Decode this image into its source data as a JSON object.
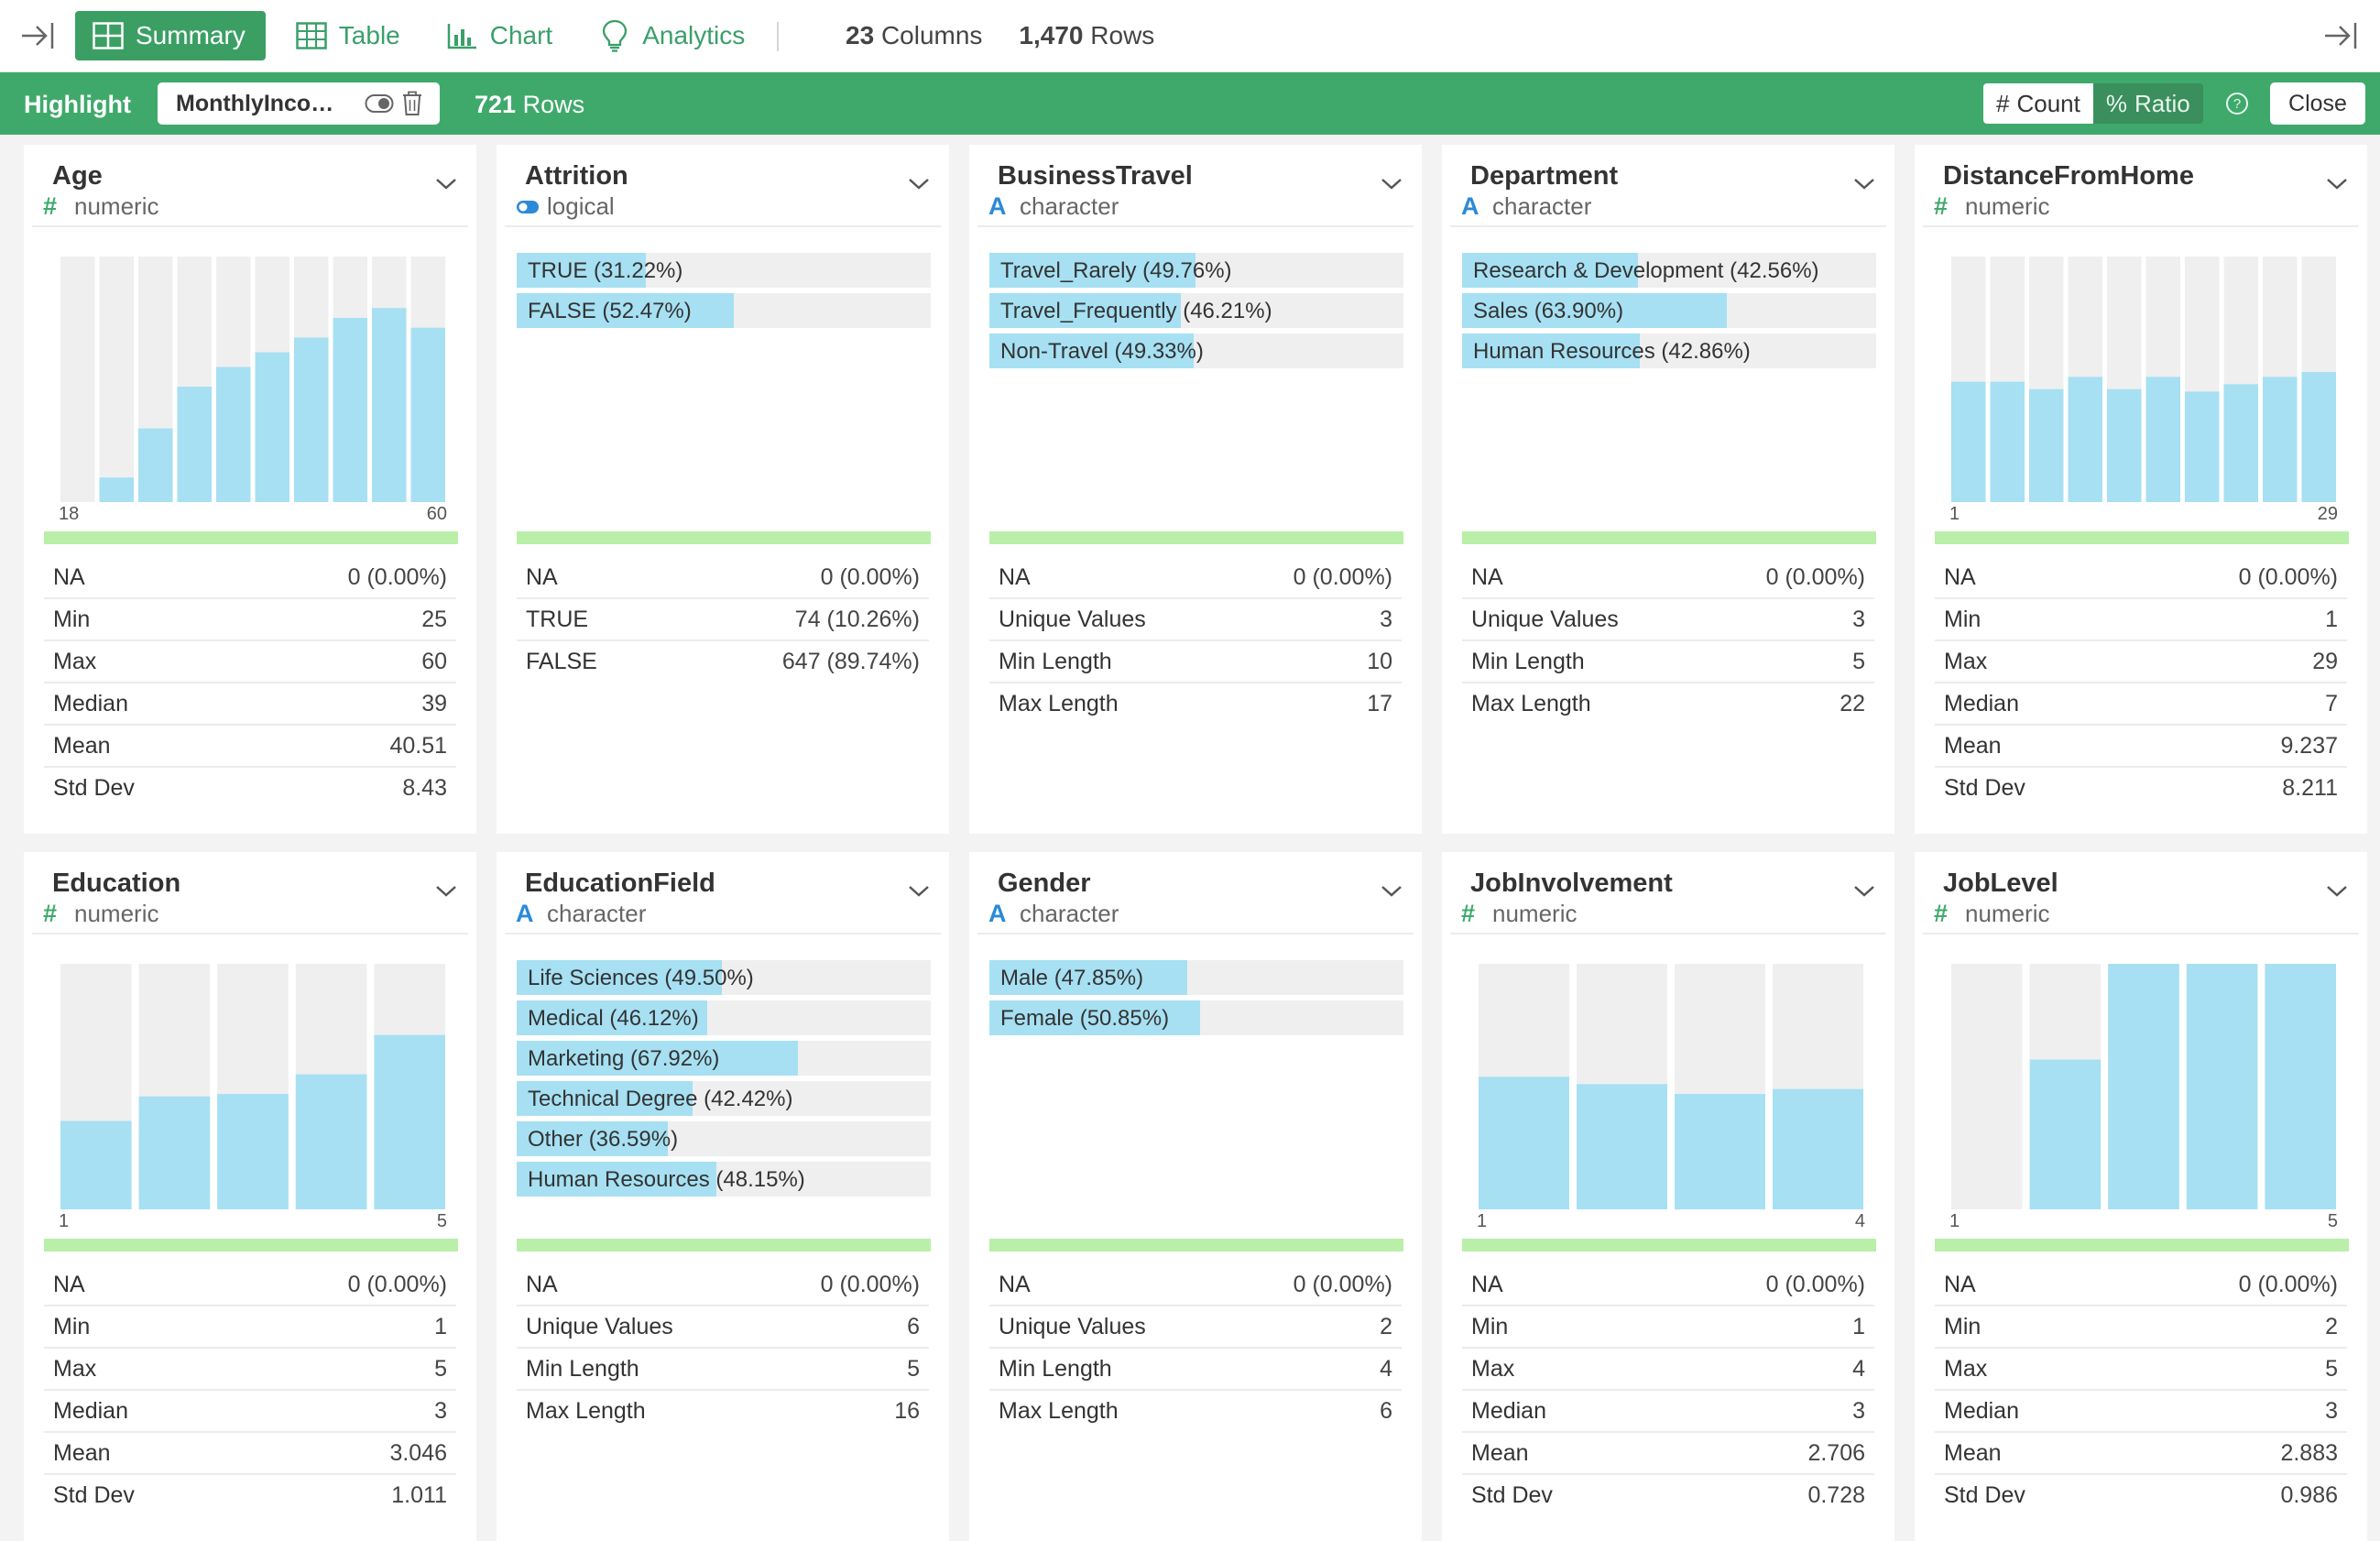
{
  "toolbar": {
    "tabs": [
      {
        "label": "Summary",
        "icon": "summary-icon",
        "active": true
      },
      {
        "label": "Table",
        "icon": "table-icon",
        "active": false
      },
      {
        "label": "Chart",
        "icon": "chart-icon",
        "active": false
      },
      {
        "label": "Analytics",
        "icon": "lightbulb-icon",
        "active": false
      }
    ],
    "columns_count": "23",
    "columns_label": "Columns",
    "rows_count": "1,470",
    "rows_label": "Rows"
  },
  "highlight": {
    "label": "Highlight",
    "column": "MonthlyIncom…",
    "rows_count": "721",
    "rows_label": "Rows",
    "count_label": "Count",
    "ratio_label": "Ratio",
    "close_label": "Close"
  },
  "colors": {
    "accent_green": "#3fa96b",
    "bar_fill": "#a6e0f2",
    "bar_bg": "#efefef",
    "na_bar": "#b9efa8"
  },
  "cards": [
    {
      "title": "Age",
      "type": "numeric",
      "type_icon": "hash-icon",
      "chart": {
        "kind": "hist",
        "axis_min": "18",
        "axis_max": "60",
        "fill": [
          0,
          0.1,
          0.3,
          0.47,
          0.55,
          0.61,
          0.67,
          0.75,
          0.79,
          0.71
        ]
      },
      "stats": [
        [
          "NA",
          "0 (0.00%)"
        ],
        [
          "Min",
          "25"
        ],
        [
          "Max",
          "60"
        ],
        [
          "Median",
          "39"
        ],
        [
          "Mean",
          "40.51"
        ],
        [
          "Std Dev",
          "8.43"
        ]
      ]
    },
    {
      "title": "Attrition",
      "type": "logical",
      "type_icon": "toggle-icon",
      "chart": {
        "kind": "cat",
        "items": [
          {
            "label": "TRUE (31.22%)",
            "ratio": 0.3122
          },
          {
            "label": "FALSE (52.47%)",
            "ratio": 0.5247
          }
        ]
      },
      "stats": [
        [
          "NA",
          "0 (0.00%)"
        ],
        [
          "TRUE",
          "74 (10.26%)"
        ],
        [
          "FALSE",
          "647 (89.74%)"
        ]
      ]
    },
    {
      "title": "BusinessTravel",
      "type": "character",
      "type_icon": "letter-a-icon",
      "chart": {
        "kind": "cat",
        "items": [
          {
            "label": "Travel_Rarely (49.76%)",
            "ratio": 0.4976
          },
          {
            "label": "Travel_Frequently (46.21%)",
            "ratio": 0.4621
          },
          {
            "label": "Non-Travel (49.33%)",
            "ratio": 0.4933
          }
        ]
      },
      "stats": [
        [
          "NA",
          "0 (0.00%)"
        ],
        [
          "Unique Values",
          "3"
        ],
        [
          "Min Length",
          "10"
        ],
        [
          "Max Length",
          "17"
        ]
      ]
    },
    {
      "title": "Department",
      "type": "character",
      "type_icon": "letter-a-icon",
      "chart": {
        "kind": "cat",
        "items": [
          {
            "label": "Research & Development (42.56%)",
            "ratio": 0.4256
          },
          {
            "label": "Sales (63.90%)",
            "ratio": 0.639
          },
          {
            "label": "Human Resources (42.86%)",
            "ratio": 0.4286
          }
        ]
      },
      "stats": [
        [
          "NA",
          "0 (0.00%)"
        ],
        [
          "Unique Values",
          "3"
        ],
        [
          "Min Length",
          "5"
        ],
        [
          "Max Length",
          "22"
        ]
      ]
    },
    {
      "title": "DistanceFromHome",
      "type": "numeric",
      "type_icon": "hash-icon",
      "chart": {
        "kind": "hist",
        "axis_min": "1",
        "axis_max": "29",
        "fill": [
          0.49,
          0.49,
          0.46,
          0.51,
          0.46,
          0.51,
          0.45,
          0.48,
          0.51,
          0.53
        ]
      },
      "stats": [
        [
          "NA",
          "0 (0.00%)"
        ],
        [
          "Min",
          "1"
        ],
        [
          "Max",
          "29"
        ],
        [
          "Median",
          "7"
        ],
        [
          "Mean",
          "9.237"
        ],
        [
          "Std Dev",
          "8.211"
        ]
      ]
    },
    {
      "title": "Education",
      "type": "numeric",
      "type_icon": "hash-icon",
      "chart": {
        "kind": "hist",
        "axis_min": "1",
        "axis_max": "5",
        "fill": [
          0.36,
          0.46,
          0.47,
          0.55,
          0.71
        ]
      },
      "stats": [
        [
          "NA",
          "0 (0.00%)"
        ],
        [
          "Min",
          "1"
        ],
        [
          "Max",
          "5"
        ],
        [
          "Median",
          "3"
        ],
        [
          "Mean",
          "3.046"
        ],
        [
          "Std Dev",
          "1.011"
        ]
      ]
    },
    {
      "title": "EducationField",
      "type": "character",
      "type_icon": "letter-a-icon",
      "chart": {
        "kind": "cat",
        "items": [
          {
            "label": "Life Sciences (49.50%)",
            "ratio": 0.495
          },
          {
            "label": "Medical (46.12%)",
            "ratio": 0.4612
          },
          {
            "label": "Marketing (67.92%)",
            "ratio": 0.6792
          },
          {
            "label": "Technical Degree (42.42%)",
            "ratio": 0.4242
          },
          {
            "label": "Other (36.59%)",
            "ratio": 0.3659
          },
          {
            "label": "Human Resources (48.15%)",
            "ratio": 0.4815
          }
        ]
      },
      "stats": [
        [
          "NA",
          "0 (0.00%)"
        ],
        [
          "Unique Values",
          "6"
        ],
        [
          "Min Length",
          "5"
        ],
        [
          "Max Length",
          "16"
        ]
      ]
    },
    {
      "title": "Gender",
      "type": "character",
      "type_icon": "letter-a-icon",
      "chart": {
        "kind": "cat",
        "items": [
          {
            "label": "Male (47.85%)",
            "ratio": 0.4785
          },
          {
            "label": "Female (50.85%)",
            "ratio": 0.5085
          }
        ]
      },
      "stats": [
        [
          "NA",
          "0 (0.00%)"
        ],
        [
          "Unique Values",
          "2"
        ],
        [
          "Min Length",
          "4"
        ],
        [
          "Max Length",
          "6"
        ]
      ]
    },
    {
      "title": "JobInvolvement",
      "type": "numeric",
      "type_icon": "hash-icon",
      "chart": {
        "kind": "hist",
        "axis_min": "1",
        "axis_max": "4",
        "fill": [
          0.54,
          0.51,
          0.47,
          0.49
        ]
      },
      "stats": [
        [
          "NA",
          "0 (0.00%)"
        ],
        [
          "Min",
          "1"
        ],
        [
          "Max",
          "4"
        ],
        [
          "Median",
          "3"
        ],
        [
          "Mean",
          "2.706"
        ],
        [
          "Std Dev",
          "0.728"
        ]
      ]
    },
    {
      "title": "JobLevel",
      "type": "numeric",
      "type_icon": "hash-icon",
      "chart": {
        "kind": "hist",
        "axis_min": "1",
        "axis_max": "5",
        "fill": [
          0,
          0.61,
          1.0,
          1.0,
          1.0
        ]
      },
      "stats": [
        [
          "NA",
          "0 (0.00%)"
        ],
        [
          "Min",
          "2"
        ],
        [
          "Max",
          "5"
        ],
        [
          "Median",
          "3"
        ],
        [
          "Mean",
          "2.883"
        ],
        [
          "Std Dev",
          "0.986"
        ]
      ]
    }
  ]
}
